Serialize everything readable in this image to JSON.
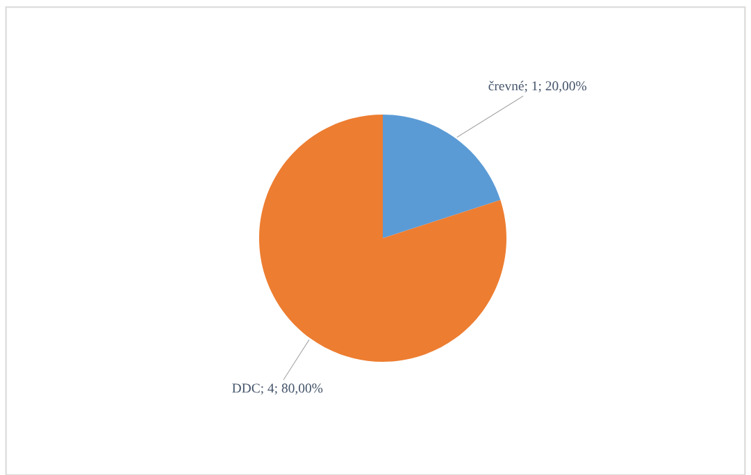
{
  "chart_data": {
    "type": "pie",
    "categories": [
      "črevné",
      "DDC"
    ],
    "values": [
      1,
      4
    ],
    "value_labels": [
      "1; 20,00%",
      "4; 80,00%"
    ],
    "colors": [
      "#5b9bd5",
      "#ed7d31"
    ],
    "legend": false
  }
}
